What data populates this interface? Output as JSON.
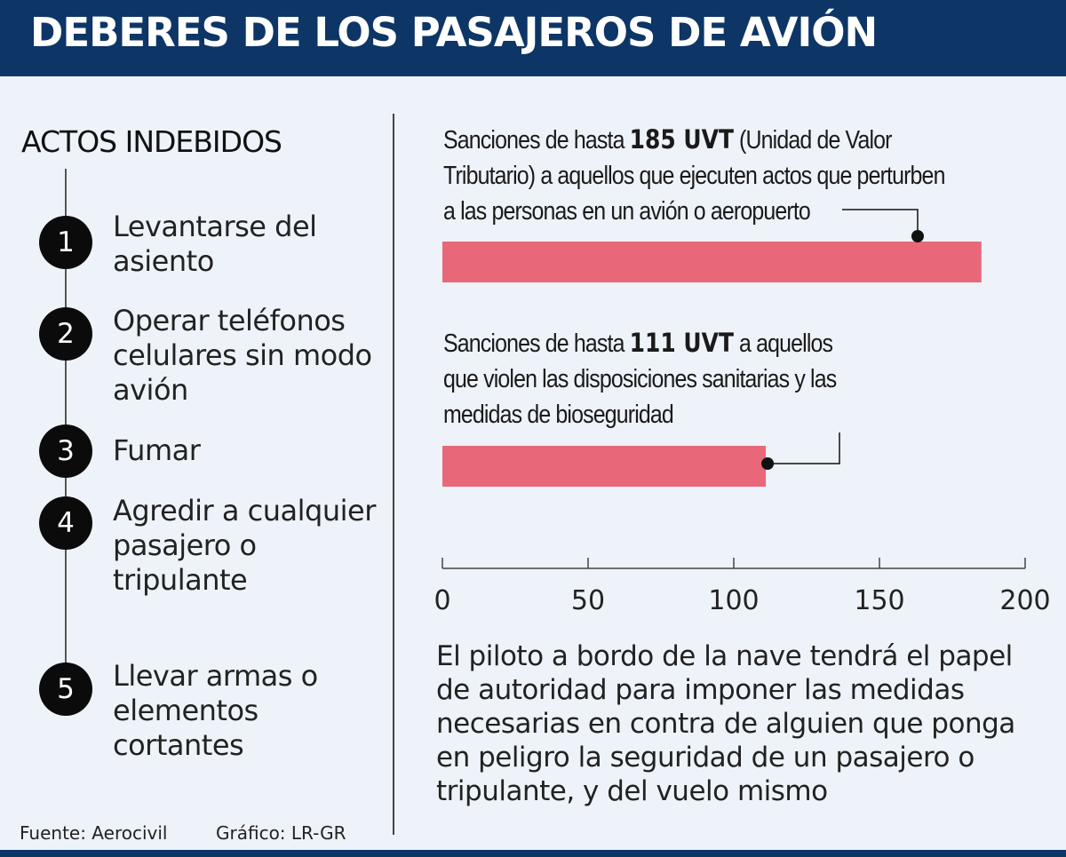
{
  "header": {
    "title": "DEBERES DE LOS PASAJEROS DE AVIÓN"
  },
  "actos": {
    "title": "ACTOS INDEBIDOS",
    "items": [
      {
        "num": "1",
        "label": "Levantarse del asiento"
      },
      {
        "num": "2",
        "label": "Operar teléfonos celulares sin modo avión"
      },
      {
        "num": "3",
        "label": "Fumar"
      },
      {
        "num": "4",
        "label": "Agredir a cualquier pasajero o tripulante"
      },
      {
        "num": "5",
        "label": "Llevar armas o elementos cortantes"
      }
    ]
  },
  "annotations": [
    {
      "prefix": "Sanciones de hasta ",
      "value_text": "185 UVT",
      "line1_rest": " (Unidad de Valor",
      "line2": "Tributario) a aquellos que ejecuten actos que perturben",
      "line3": "a las personas en un avión o aeropuerto"
    },
    {
      "prefix": "Sanciones de hasta ",
      "value_text": "111 UVT",
      "line1_rest": " a aquellos",
      "line2": "que violen las disposiciones sanitarias y las",
      "line3": "medidas de bioseguridad"
    }
  ],
  "chart_data": {
    "type": "bar",
    "orientation": "horizontal",
    "categories": [
      "Actos que perturben a las personas en un avión o aeropuerto",
      "Violar las disposiciones sanitarias y las medidas de bioseguridad"
    ],
    "values": [
      185,
      111
    ],
    "unit": "UVT",
    "xlim": [
      0,
      200
    ],
    "xticks": [
      0,
      50,
      100,
      150,
      200
    ],
    "bar_color": "#e8687a",
    "grid": false
  },
  "note": "El piloto a bordo de la nave tendrá el papel de autoridad para imponer las medidas necesarias en contra de alguien que ponga en peligro la seguridad de un pasajero o tripulante, y del vuelo mismo",
  "footer": {
    "source": "Fuente: Aerocivil",
    "credit": "Gráfico: LR-GR"
  },
  "colors": {
    "header_bg": "#0d3566",
    "page_bg": "#eef3f9",
    "bar": "#e8687a"
  }
}
